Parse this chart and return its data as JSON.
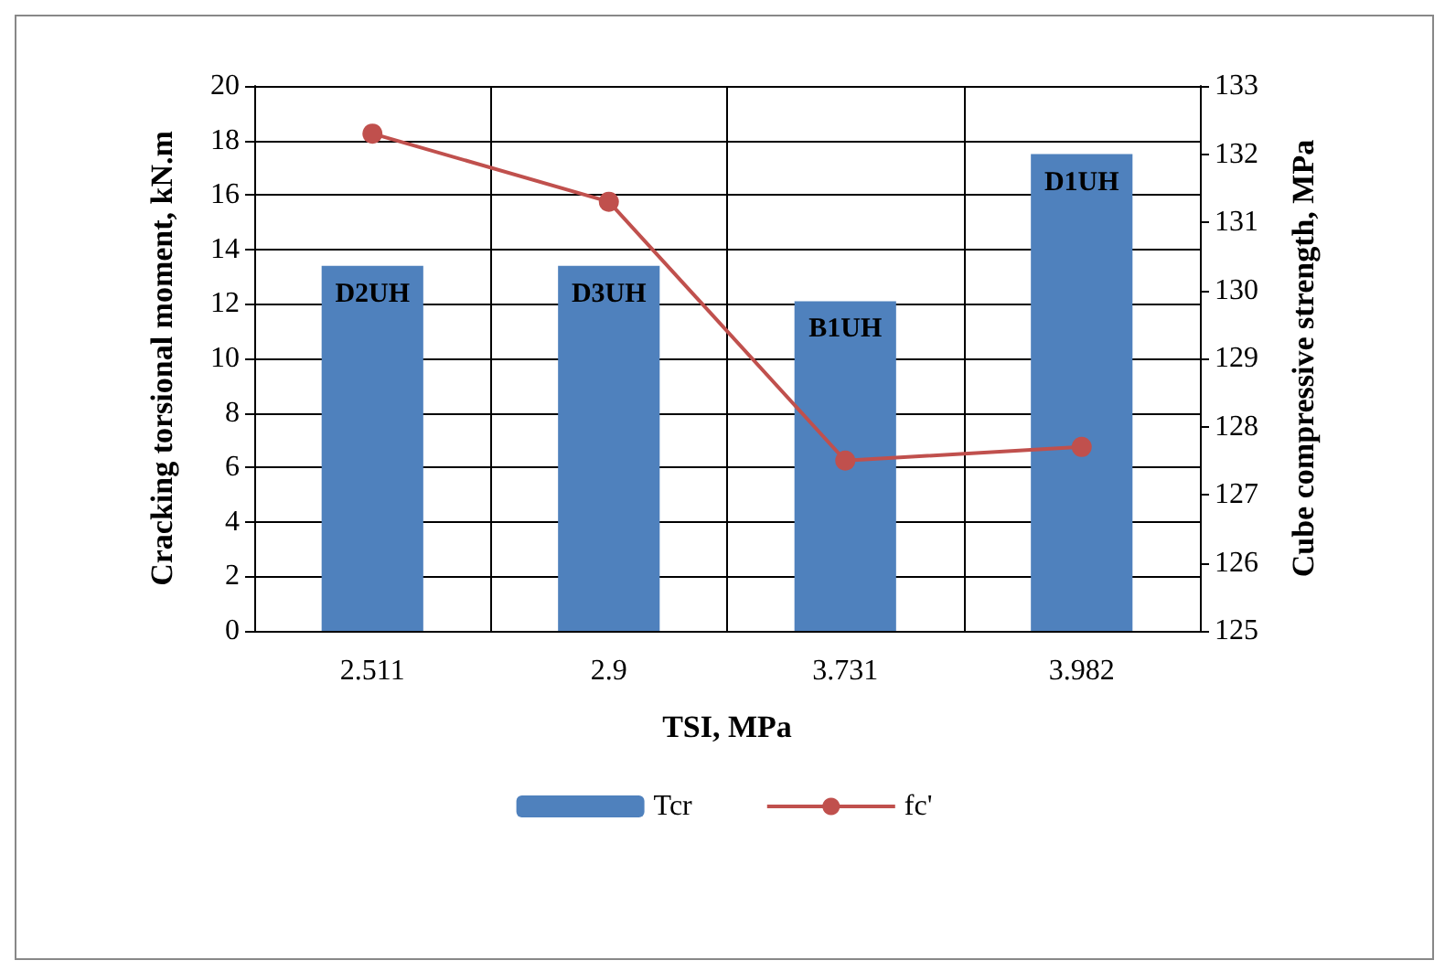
{
  "chart_data": {
    "type": "bar",
    "xlabel": "TSI, MPa",
    "ylabel": "Cracking torsional moment, kN.m",
    "y2label": "Cube compressive strength, MPa",
    "categories": [
      "2.511",
      "2.9",
      "3.731",
      "3.982"
    ],
    "series": [
      {
        "name": "Tcr",
        "color": "#4f81bd",
        "values": [
          13.4,
          13.4,
          12.1,
          17.5
        ],
        "value_labels": [
          "D2UH",
          "D3UH",
          "B1UH",
          "D1UH"
        ]
      },
      {
        "name": "fc'",
        "type": "line",
        "axis": "y2",
        "color": "#c0504d",
        "values": [
          132.3,
          131.3,
          127.5,
          127.7
        ],
        "marker": "circle"
      }
    ],
    "ylim": [
      0,
      20
    ],
    "yticks": [
      0,
      2,
      4,
      6,
      8,
      10,
      12,
      14,
      16,
      18,
      20
    ],
    "y2lim": [
      125,
      133
    ],
    "y2ticks": [
      125,
      126,
      127,
      128,
      129,
      130,
      131,
      132,
      133
    ],
    "grid": true,
    "legend": "bottom"
  }
}
